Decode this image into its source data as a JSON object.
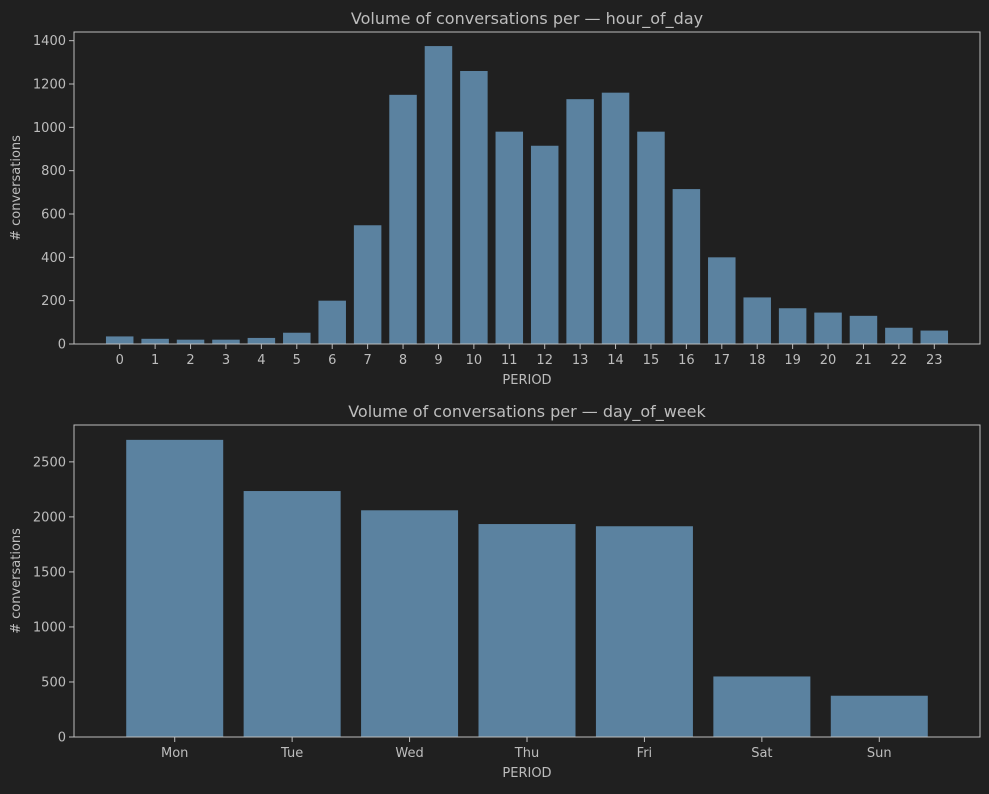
{
  "colors": {
    "background": "#202020",
    "bar": "#5b82a0",
    "axis": "#bdbdbd",
    "text": "#bdbdbd"
  },
  "chart_data": [
    {
      "type": "bar",
      "title": "Volume of conversations per — hour_of_day",
      "xlabel": "PERIOD",
      "ylabel": "# conversations",
      "categories": [
        "0",
        "1",
        "2",
        "3",
        "4",
        "5",
        "6",
        "7",
        "8",
        "9",
        "10",
        "11",
        "12",
        "13",
        "14",
        "15",
        "16",
        "17",
        "18",
        "19",
        "20",
        "21",
        "22",
        "23"
      ],
      "values": [
        35,
        24,
        20,
        20,
        28,
        52,
        200,
        548,
        1150,
        1375,
        1260,
        980,
        915,
        1130,
        1160,
        980,
        715,
        400,
        215,
        165,
        145,
        130,
        75,
        62
      ],
      "ylim": [
        0,
        1440
      ],
      "yticks": [
        0,
        200,
        400,
        600,
        800,
        1000,
        1200,
        1400
      ],
      "grid": false,
      "legend": "none"
    },
    {
      "type": "bar",
      "title": "Volume of conversations per — day_of_week",
      "xlabel": "PERIOD",
      "ylabel": "# conversations",
      "categories": [
        "Mon",
        "Tue",
        "Wed",
        "Thu",
        "Fri",
        "Sat",
        "Sun"
      ],
      "values": [
        2700,
        2235,
        2060,
        1935,
        1915,
        550,
        375
      ],
      "ylim": [
        0,
        2835
      ],
      "yticks": [
        0,
        500,
        1000,
        1500,
        2000,
        2500
      ],
      "grid": false,
      "legend": "none"
    }
  ]
}
